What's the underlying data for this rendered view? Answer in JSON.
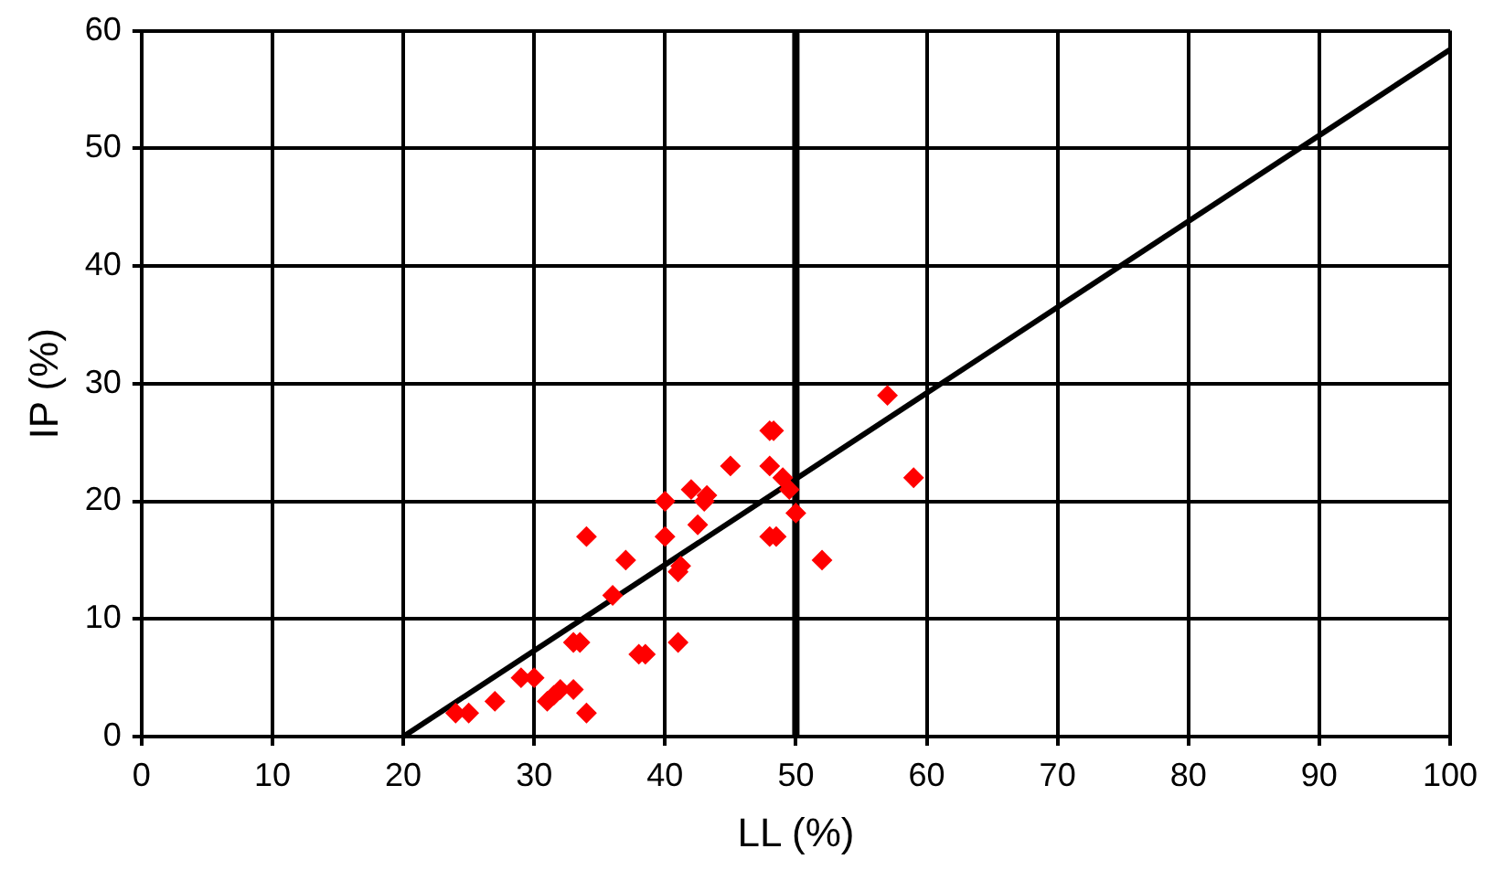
{
  "chart_data": {
    "type": "scatter",
    "xlabel": "LL (%)",
    "ylabel": "IP (%)",
    "xlim": [
      0,
      100
    ],
    "ylim": [
      0,
      60
    ],
    "xticks": [
      0,
      10,
      20,
      30,
      40,
      50,
      60,
      70,
      80,
      90,
      100
    ],
    "yticks": [
      0,
      10,
      20,
      30,
      40,
      50,
      60
    ],
    "grid": true,
    "legend": false,
    "series": [
      {
        "type": "scatter",
        "color": "#ff0000",
        "marker": "diamond",
        "x": [
          24,
          25,
          27,
          29,
          30,
          31,
          31.5,
          32,
          33,
          33,
          33.5,
          34,
          34,
          36,
          37,
          38,
          38.5,
          40,
          40,
          41,
          41.2,
          41,
          42,
          42.5,
          43,
          43.2,
          45,
          48,
          48.3,
          48,
          48,
          48.5,
          49,
          49.5,
          50,
          52,
          57,
          59
        ],
        "values": [
          2,
          2,
          3,
          5,
          5,
          3,
          3.5,
          4,
          4,
          8,
          8,
          2,
          17,
          12,
          15,
          7,
          7,
          20,
          17,
          14,
          14.5,
          8,
          21,
          18,
          20,
          20.5,
          23,
          26,
          26,
          23,
          17,
          17,
          22,
          21,
          19,
          15,
          29,
          22
        ]
      },
      {
        "type": "line",
        "color": "#000000",
        "marker": "none",
        "line_style": "solid",
        "x": [
          20,
          100
        ],
        "values": [
          0,
          58.4
        ]
      }
    ],
    "ref_lines": [
      {
        "axis": "x",
        "value": 50,
        "color": "#000000",
        "line_style": "solid"
      }
    ]
  }
}
